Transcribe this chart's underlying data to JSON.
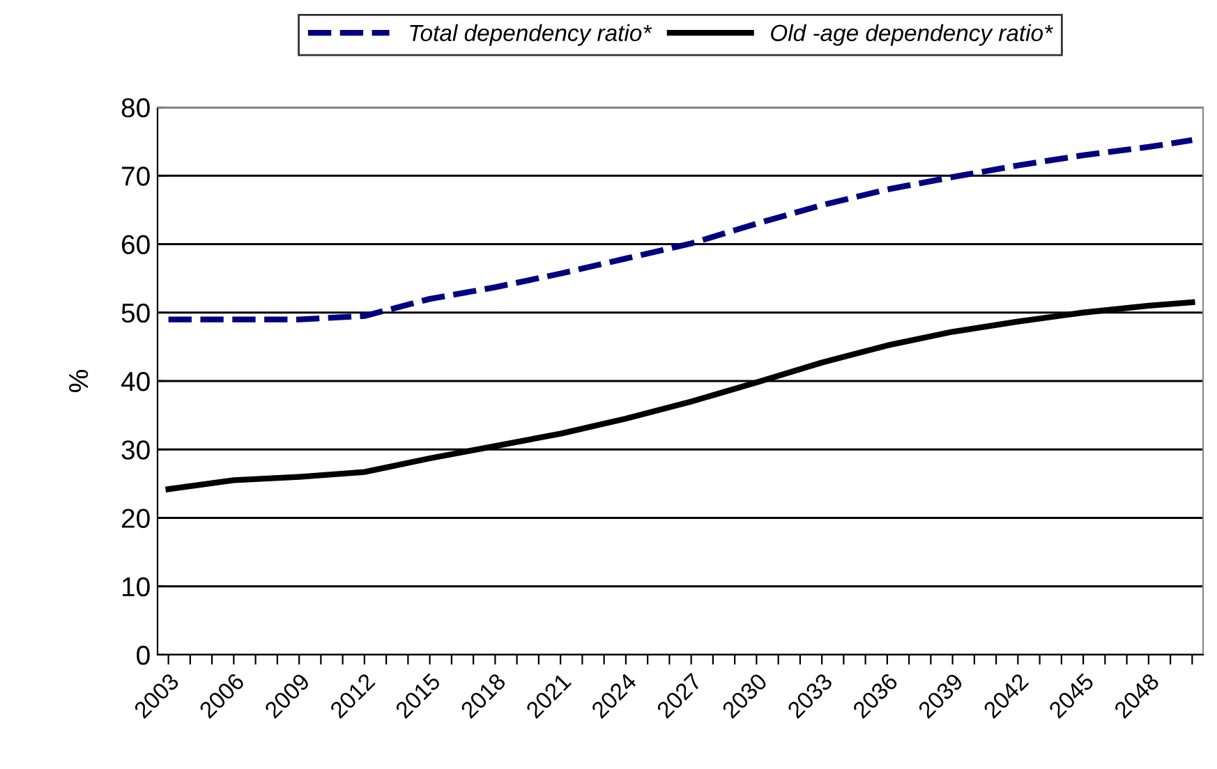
{
  "chart_data": {
    "type": "line",
    "ylabel": "%",
    "x": [
      2003,
      2006,
      2009,
      2012,
      2015,
      2018,
      2021,
      2024,
      2027,
      2030,
      2033,
      2036,
      2039,
      2042,
      2045,
      2048,
      2050
    ],
    "series": [
      {
        "name": "Total dependency ratio*",
        "color": "#000080",
        "line_style": "dashed",
        "values": [
          49.0,
          49.0,
          49.0,
          49.5,
          52.0,
          53.7,
          55.7,
          57.9,
          60.1,
          63.0,
          65.7,
          68.0,
          69.8,
          71.5,
          73.0,
          74.2,
          75.2
        ]
      },
      {
        "name": "Old -age dependency ratio*",
        "color": "#000000",
        "line_style": "solid",
        "values": [
          24.2,
          25.5,
          26.0,
          26.7,
          28.7,
          30.5,
          32.3,
          34.5,
          37.0,
          39.8,
          42.7,
          45.2,
          47.2,
          48.7,
          50.0,
          51.0,
          51.5
        ]
      }
    ],
    "xlim": [
      2002.5,
      2050.5
    ],
    "xticks": [
      2003,
      {
        "value": 2004,
        "label": null
      },
      {
        "value": 2005,
        "label": null
      },
      2006,
      {
        "value": 2007,
        "label": null
      },
      {
        "value": 2008,
        "label": null
      },
      2009,
      {
        "value": 2010,
        "label": null
      },
      {
        "value": 2011,
        "label": null
      },
      2012,
      {
        "value": 2013,
        "label": null
      },
      {
        "value": 2014,
        "label": null
      },
      2015,
      {
        "value": 2016,
        "label": null
      },
      {
        "value": 2017,
        "label": null
      },
      2018,
      {
        "value": 2019,
        "label": null
      },
      {
        "value": 2020,
        "label": null
      },
      2021,
      {
        "value": 2022,
        "label": null
      },
      {
        "value": 2023,
        "label": null
      },
      2024,
      {
        "value": 2025,
        "label": null
      },
      {
        "value": 2026,
        "label": null
      },
      2027,
      {
        "value": 2028,
        "label": null
      },
      {
        "value": 2029,
        "label": null
      },
      2030,
      {
        "value": 2031,
        "label": null
      },
      {
        "value": 2032,
        "label": null
      },
      2033,
      {
        "value": 2034,
        "label": null
      },
      {
        "value": 2035,
        "label": null
      },
      2036,
      {
        "value": 2037,
        "label": null
      },
      {
        "value": 2038,
        "label": null
      },
      2039,
      {
        "value": 2040,
        "label": null
      },
      {
        "value": 2041,
        "label": null
      },
      2042,
      {
        "value": 2043,
        "label": null
      },
      {
        "value": 2044,
        "label": null
      },
      2045,
      {
        "value": 2046,
        "label": null
      },
      {
        "value": 2047,
        "label": null
      },
      2048,
      {
        "value": 2049,
        "label": null
      },
      {
        "value": 2050,
        "label": null
      }
    ],
    "ylim": [
      0,
      80
    ],
    "yticks": [
      0,
      10,
      20,
      30,
      40,
      50,
      60,
      70,
      80
    ],
    "grid": "y",
    "legend": "top",
    "marker": "none"
  }
}
